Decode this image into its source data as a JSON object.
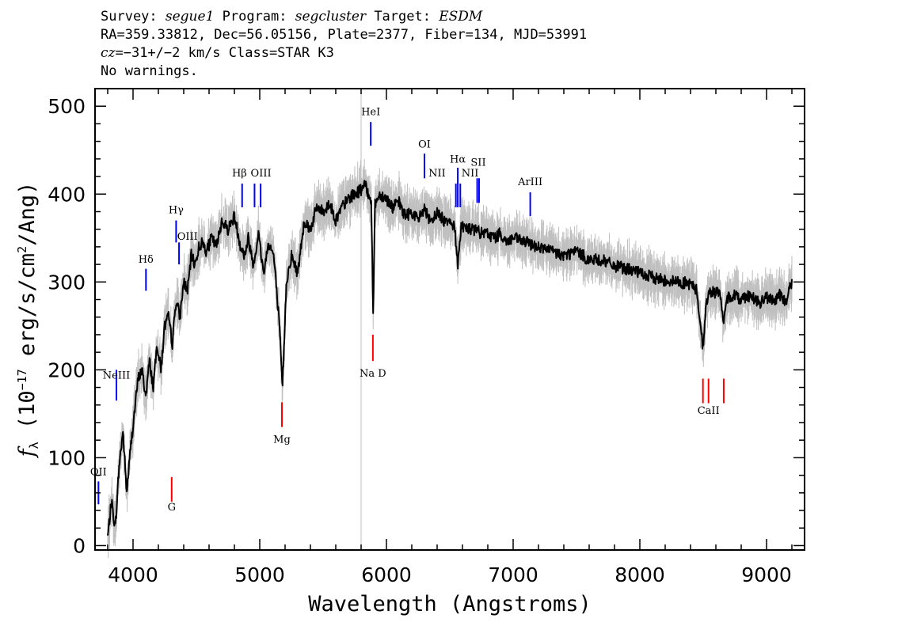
{
  "header": {
    "survey_label": "Survey: ",
    "survey": "segue1",
    "program_label": " Program: ",
    "program": "segcluster",
    "target_label": " Target: ",
    "target": "ESDM",
    "line2": "RA=359.33812, Dec=56.05156, Plate=2377, Fiber=134, MJD=53991",
    "cz_label": "cz",
    "cz_value": "=−31+/−2 km/s Class=STAR K3",
    "line4": "No warnings."
  },
  "colors": {
    "spectrum": "#000000",
    "error": "#c0c0c0",
    "emission": "#0000ff",
    "absorption": "#ff0000"
  },
  "chart_data": {
    "type": "line",
    "xlabel": "Wavelength (Angstroms)",
    "ylabel_prefix": "f",
    "ylabel_sub": "λ",
    "ylabel_main": " (10",
    "ylabel_exp": "−17",
    "ylabel_mid": " erg/s/cm",
    "ylabel_exp2": "2",
    "ylabel_end": "/Ang)",
    "xlim": [
      3700,
      9300
    ],
    "ylim": [
      -5,
      520
    ],
    "xticks": [
      4000,
      5000,
      6000,
      7000,
      8000,
      9000
    ],
    "yticks": [
      0,
      100,
      200,
      300,
      400,
      500
    ],
    "vertical_marker_x": 5800,
    "series": [
      {
        "name": "flux",
        "x": [
          3800,
          3830,
          3860,
          3890,
          3920,
          3950,
          3980,
          4010,
          4040,
          4070,
          4100,
          4130,
          4160,
          4190,
          4220,
          4250,
          4280,
          4310,
          4340,
          4370,
          4400,
          4430,
          4460,
          4490,
          4520,
          4550,
          4580,
          4620,
          4660,
          4700,
          4750,
          4800,
          4850,
          4880,
          4910,
          4950,
          4990,
          5030,
          5070,
          5110,
          5150,
          5180,
          5210,
          5250,
          5300,
          5350,
          5400,
          5450,
          5500,
          5550,
          5600,
          5650,
          5700,
          5750,
          5800,
          5830,
          5860,
          5880,
          5895,
          5910,
          5950,
          6000,
          6050,
          6100,
          6150,
          6200,
          6250,
          6300,
          6350,
          6400,
          6450,
          6500,
          6540,
          6563,
          6590,
          6650,
          6700,
          6750,
          6800,
          6850,
          6900,
          6950,
          7000,
          7100,
          7200,
          7300,
          7400,
          7500,
          7600,
          7700,
          7800,
          7900,
          8000,
          8100,
          8200,
          8300,
          8400,
          8450,
          8498,
          8520,
          8542,
          8570,
          8600,
          8640,
          8662,
          8690,
          8750,
          8800,
          8850,
          8900,
          8950,
          9000,
          9050,
          9100,
          9150,
          9200
        ],
        "y": [
          10,
          50,
          20,
          90,
          130,
          60,
          110,
          150,
          190,
          200,
          170,
          210,
          180,
          230,
          200,
          250,
          260,
          230,
          280,
          260,
          300,
          290,
          330,
          320,
          340,
          345,
          335,
          350,
          340,
          370,
          360,
          375,
          340,
          330,
          350,
          320,
          355,
          310,
          345,
          330,
          260,
          180,
          300,
          330,
          310,
          370,
          360,
          385,
          380,
          390,
          370,
          385,
          395,
          400,
          405,
          410,
          400,
          395,
          260,
          390,
          400,
          395,
          385,
          390,
          375,
          380,
          370,
          385,
          365,
          380,
          370,
          372,
          360,
          320,
          365,
          360,
          360,
          355,
          355,
          350,
          355,
          345,
          350,
          345,
          340,
          335,
          330,
          335,
          325,
          325,
          318,
          315,
          310,
          305,
          302,
          300,
          298,
          290,
          225,
          270,
          285,
          290,
          288,
          285,
          250,
          282,
          285,
          280,
          285,
          282,
          275,
          283,
          278,
          285,
          278,
          300
        ]
      }
    ],
    "line_labels": [
      {
        "name": "NeIII",
        "x": 3869,
        "type": "emission",
        "yb": 165,
        "yt": 200,
        "ly": 190,
        "label": "NeIII",
        "lx": 3869
      },
      {
        "name": "OII",
        "x": 3727,
        "type": "emission",
        "yb": 47,
        "yt": 73,
        "ly": 80,
        "label": "OII",
        "lx": 3727
      },
      {
        "name": "G",
        "x": 4305,
        "type": "absorption",
        "yb": 50,
        "yt": 78,
        "ly": 40,
        "label": "G",
        "lx": 4305
      },
      {
        "name": "Hdelta",
        "x": 4102,
        "type": "emission",
        "yb": 290,
        "yt": 315,
        "ly": 322,
        "label": "Hδ",
        "lx": 4102
      },
      {
        "name": "Hgamma",
        "x": 4340,
        "type": "emission",
        "yb": 345,
        "yt": 370,
        "ly": 378,
        "label": "Hγ",
        "lx": 4340
      },
      {
        "name": "OIII4363",
        "x": 4363,
        "type": "emission",
        "yb": 320,
        "yt": 345,
        "ly": 348,
        "label": "OIII",
        "lx": 4430
      },
      {
        "name": "Hbeta",
        "x": 4861,
        "type": "emission",
        "yb": 385,
        "yt": 412,
        "ly": 420,
        "label": "Hβ",
        "lx": 4840
      },
      {
        "name": "OIII4959",
        "x": 4959,
        "type": "emission",
        "yb": 385,
        "yt": 412,
        "ly": 420,
        "label": "OIII",
        "lx": 5010
      },
      {
        "name": "OIII5007",
        "x": 5007,
        "type": "emission",
        "yb": 385,
        "yt": 412,
        "ly": null,
        "label": null,
        "lx": null
      },
      {
        "name": "Mg",
        "x": 5175,
        "type": "absorption",
        "yb": 135,
        "yt": 163,
        "ly": 117,
        "label": "Mg",
        "lx": 5175
      },
      {
        "name": "HeI",
        "x": 5876,
        "type": "emission",
        "yb": 455,
        "yt": 482,
        "ly": 490,
        "label": "HeI",
        "lx": 5876
      },
      {
        "name": "NaD",
        "x": 5893,
        "type": "absorption",
        "yb": 210,
        "yt": 240,
        "ly": 192,
        "label": "Na D",
        "lx": 5893
      },
      {
        "name": "OI",
        "x": 6300,
        "type": "emission",
        "yb": 418,
        "yt": 446,
        "ly": 453,
        "label": "OI",
        "lx": 6300
      },
      {
        "name": "NII6548",
        "x": 6548,
        "type": "emission",
        "yb": 385,
        "yt": 412,
        "ly": 420,
        "label": "NII",
        "lx": 6400
      },
      {
        "name": "Halpha",
        "x": 6563,
        "type": "emission",
        "yb": 385,
        "yt": 430,
        "ly": 436,
        "label": "Hα",
        "lx": 6563
      },
      {
        "name": "NII6583",
        "x": 6583,
        "type": "emission",
        "yb": 385,
        "yt": 412,
        "ly": 420,
        "label": "NII",
        "lx": 6660
      },
      {
        "name": "SII6716",
        "x": 6716,
        "type": "emission",
        "yb": 390,
        "yt": 418,
        "ly": 432,
        "label": "SII",
        "lx": 6725
      },
      {
        "name": "SII6731",
        "x": 6731,
        "type": "emission",
        "yb": 390,
        "yt": 418,
        "ly": null,
        "label": null,
        "lx": null
      },
      {
        "name": "ArIII",
        "x": 7135,
        "type": "emission",
        "yb": 375,
        "yt": 402,
        "ly": 410,
        "label": "ArIII",
        "lx": 7135
      },
      {
        "name": "CaII8498",
        "x": 8498,
        "type": "absorption",
        "yb": 162,
        "yt": 190,
        "ly": null,
        "label": null,
        "lx": null
      },
      {
        "name": "CaII8542",
        "x": 8542,
        "type": "absorption",
        "yb": 162,
        "yt": 190,
        "ly": 150,
        "label": "CaII",
        "lx": 8542
      },
      {
        "name": "CaII8662",
        "x": 8662,
        "type": "absorption",
        "yb": 162,
        "yt": 190,
        "ly": null,
        "label": null,
        "lx": null
      }
    ]
  }
}
